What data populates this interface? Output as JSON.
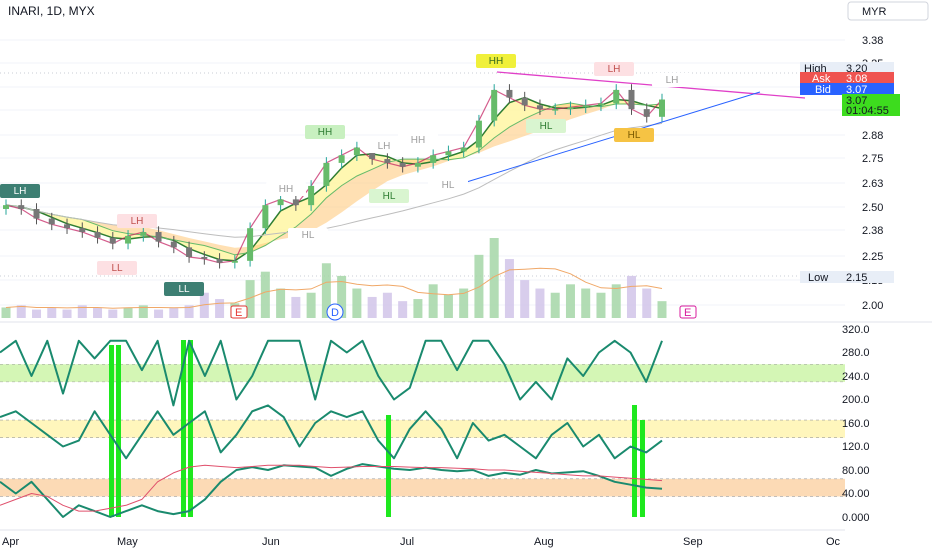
{
  "header": {
    "symbol": "INARI, 1D, MYX",
    "currency": "MYR"
  },
  "price_panel": {
    "y_ticks": [
      "3.38",
      "3.25",
      "3.13",
      "3.00",
      "2.88",
      "2.75",
      "2.63",
      "2.50",
      "2.38",
      "2.25",
      "2.13",
      "2.00"
    ],
    "high": {
      "label": "High",
      "value": "3.20"
    },
    "ask": {
      "label": "Ask",
      "value": "3.08"
    },
    "bid": {
      "label": "Bid",
      "value": "3.07"
    },
    "last": {
      "value": "3.07",
      "countdown": "01:04:55"
    },
    "low": {
      "label": "Low",
      "value": "2.15"
    },
    "colors": {
      "high_bg": "#e8eef7",
      "ask": "#ef5350",
      "bid": "#2962ff",
      "last": "#3ddc1e",
      "low_bg": "#e8eef7"
    }
  },
  "osc_panel": {
    "y_ticks": [
      "320.0",
      "280.0",
      "240.0",
      "200.0",
      "160.0",
      "120.0",
      "80.00",
      "40.00",
      "0.000"
    ]
  },
  "x_axis": {
    "labels": [
      "Apr",
      "May",
      "Jun",
      "Jul",
      "Aug",
      "Sep",
      "Oc"
    ]
  },
  "event_markers": [
    "E",
    "D",
    "E"
  ],
  "swing_labels": [
    "LH",
    "LH",
    "LL",
    "LL",
    "HH",
    "LH",
    "HH",
    "HL",
    "HH",
    "HL",
    "HL",
    "HH",
    "HL",
    "LH",
    "HL",
    "LH"
  ],
  "chart_data": [
    {
      "type": "candlestick",
      "title": "INARI, 1D, MYX",
      "ylim": [
        1.98,
        3.45
      ],
      "x": [
        "Apr",
        "Apr",
        "Apr",
        "Apr",
        "Apr",
        "Apr",
        "Apr",
        "Apr",
        "May",
        "May",
        "May",
        "May",
        "May",
        "May",
        "May",
        "May",
        "May",
        "Jun",
        "Jun",
        "Jun",
        "Jun",
        "Jun",
        "Jun",
        "Jun",
        "Jun",
        "Jun",
        "Jul",
        "Jul",
        "Jul",
        "Jul",
        "Jul",
        "Jul",
        "Jul",
        "Jul",
        "Jul",
        "Aug",
        "Aug",
        "Aug",
        "Aug",
        "Aug",
        "Aug",
        "Aug",
        "Aug",
        "Aug"
      ],
      "close": [
        2.52,
        2.5,
        2.45,
        2.42,
        2.4,
        2.38,
        2.35,
        2.32,
        2.36,
        2.38,
        2.33,
        2.3,
        2.25,
        2.24,
        2.22,
        2.23,
        2.4,
        2.52,
        2.55,
        2.52,
        2.62,
        2.74,
        2.78,
        2.82,
        2.76,
        2.74,
        2.72,
        2.74,
        2.78,
        2.8,
        2.82,
        2.96,
        3.12,
        3.08,
        3.04,
        3.02,
        3.02,
        3.03,
        3.04,
        3.05,
        3.12,
        3.02,
        2.98,
        3.07
      ],
      "series_lines": [
        "EMA ribbon fast",
        "EMA ribbon slow",
        "MA long"
      ],
      "trendlines": [
        {
          "name": "resistance",
          "from": [
            "Jul",
            3.22
          ],
          "to": [
            "Sep",
            3.04
          ],
          "color": "#e040c8"
        },
        {
          "name": "support",
          "from": [
            "Jul",
            2.72
          ],
          "to": [
            "Sep",
            3.07
          ],
          "color": "#2962ff"
        }
      ],
      "volume": [
        5,
        6,
        4,
        5,
        4,
        6,
        5,
        4,
        5,
        6,
        4,
        5,
        6,
        12,
        9,
        7,
        18,
        22,
        14,
        10,
        12,
        26,
        20,
        14,
        10,
        12,
        8,
        9,
        16,
        11,
        14,
        30,
        38,
        28,
        18,
        14,
        12,
        16,
        14,
        12,
        16,
        20,
        14,
        8
      ]
    },
    {
      "type": "line",
      "ylim": [
        0,
        320
      ],
      "bands": [
        [
          230,
          260
        ],
        [
          135,
          165
        ],
        [
          35,
          65
        ]
      ],
      "series": [
        {
          "values": [
            280,
            300,
            240,
            300,
            210,
            300,
            270,
            300,
            300,
            250,
            300,
            190,
            300,
            240,
            300,
            200,
            240,
            300,
            300,
            300,
            200,
            300,
            280,
            300,
            240,
            200,
            220,
            300,
            300,
            250,
            300,
            300,
            260,
            200,
            230,
            200,
            270,
            240,
            280,
            300,
            280,
            230,
            300
          ]
        },
        {
          "values": [
            170,
            180,
            160,
            140,
            120,
            130,
            180,
            140,
            100,
            140,
            180,
            140,
            160,
            180,
            110,
            140,
            180,
            190,
            170,
            120,
            160,
            180,
            170,
            180,
            130,
            100,
            150,
            180,
            150,
            100,
            160,
            130,
            140,
            120,
            100,
            140,
            160,
            120,
            140,
            100,
            120,
            110,
            130
          ]
        },
        {
          "values": [
            60,
            40,
            60,
            30,
            0,
            20,
            10,
            0,
            10,
            20,
            10,
            5,
            10,
            30,
            60,
            80,
            85,
            80,
            88,
            86,
            84,
            70,
            82,
            90,
            86,
            82,
            80,
            84,
            80,
            78,
            80,
            70,
            75,
            72,
            80,
            74,
            76,
            78,
            70,
            60,
            55,
            50,
            48
          ]
        },
        {
          "values": [
            20,
            30,
            40,
            35,
            20,
            10,
            10,
            15,
            20,
            30,
            60,
            75,
            85,
            88,
            86,
            84,
            86,
            88,
            88,
            88,
            86,
            84,
            85,
            86,
            86,
            86,
            85,
            84,
            84,
            83,
            82,
            80,
            80,
            78,
            76,
            74,
            72,
            70,
            70,
            68,
            66,
            64,
            62
          ]
        }
      ]
    }
  ]
}
